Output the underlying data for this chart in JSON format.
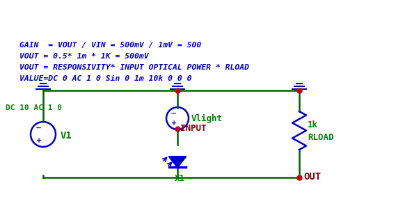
{
  "bg_color": "#ffffff",
  "wire_color": "#006400",
  "component_color": "#0000cd",
  "label_green": "#008000",
  "label_red": "#8b0000",
  "label_blue": "#0000cd",
  "text_lines": [
    "VALUE=DC 0 AC 1 0 Sin 0 1m 10k 0 0 0",
    "VOUT = RESPONSIVITY* INPUT OPTICAL POWER * RLOAD",
    "VOUT = 0.5* 1m * 1K = 500mV",
    "GAIN  = VOUT / VIN = 500mV / 1mV = 500"
  ],
  "node_color": "#cc0000",
  "X1_label": "X1",
  "V1_label": "V1",
  "V1_sub": "DC 10 AC 1 0",
  "INPUT_label": "INPUT",
  "Vlight_label": "Vlight",
  "OUT_label": "OUT",
  "RLOAD_label": "RLOAD",
  "RLOAD_val": "1k"
}
